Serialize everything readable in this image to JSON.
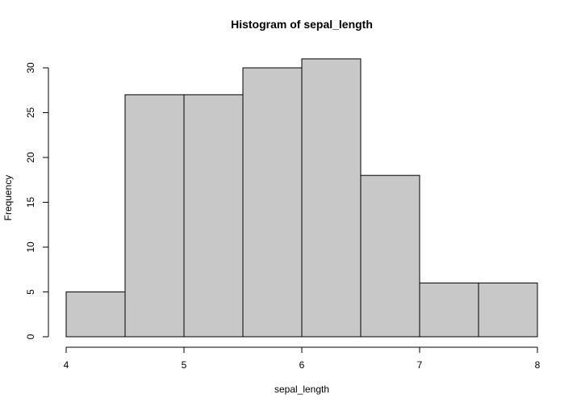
{
  "chart_data": {
    "type": "bar",
    "title": "Histogram of sepal_length",
    "xlabel": "sepal_length",
    "ylabel": "Frequency",
    "bins": [
      {
        "start": 4.0,
        "end": 4.5,
        "count": 5
      },
      {
        "start": 4.5,
        "end": 5.0,
        "count": 27
      },
      {
        "start": 5.0,
        "end": 5.5,
        "count": 27
      },
      {
        "start": 5.5,
        "end": 6.0,
        "count": 30
      },
      {
        "start": 6.0,
        "end": 6.5,
        "count": 31
      },
      {
        "start": 6.5,
        "end": 7.0,
        "count": 18
      },
      {
        "start": 7.0,
        "end": 7.5,
        "count": 6
      },
      {
        "start": 7.5,
        "end": 8.0,
        "count": 6
      }
    ],
    "xlim": [
      4,
      8
    ],
    "ylim": [
      0,
      30
    ],
    "xticks": [
      4,
      5,
      6,
      7,
      8
    ],
    "yticks": [
      0,
      5,
      10,
      15,
      20,
      25,
      30
    ],
    "grid": false,
    "bar_color": "#c8c8c8",
    "edge_color": "#000000"
  }
}
